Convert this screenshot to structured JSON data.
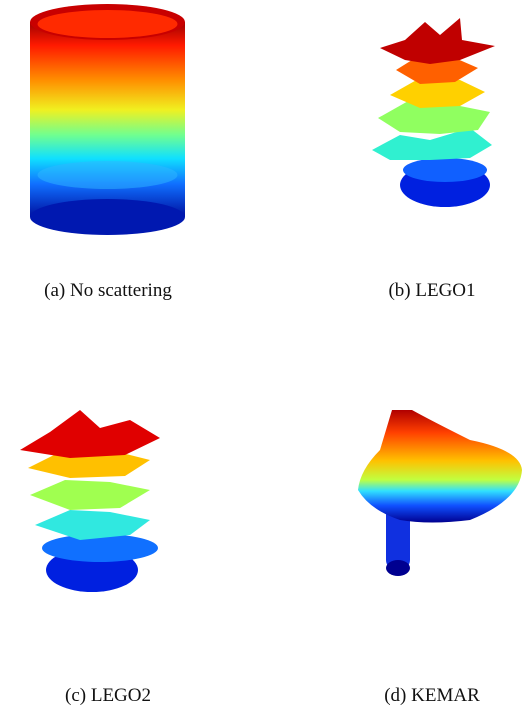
{
  "figures": [
    {
      "caption": "(a) No scattering"
    },
    {
      "caption": "(b) LEGO1"
    },
    {
      "caption": "(c) LEGO2"
    },
    {
      "caption": "(d) KEMAR"
    }
  ]
}
